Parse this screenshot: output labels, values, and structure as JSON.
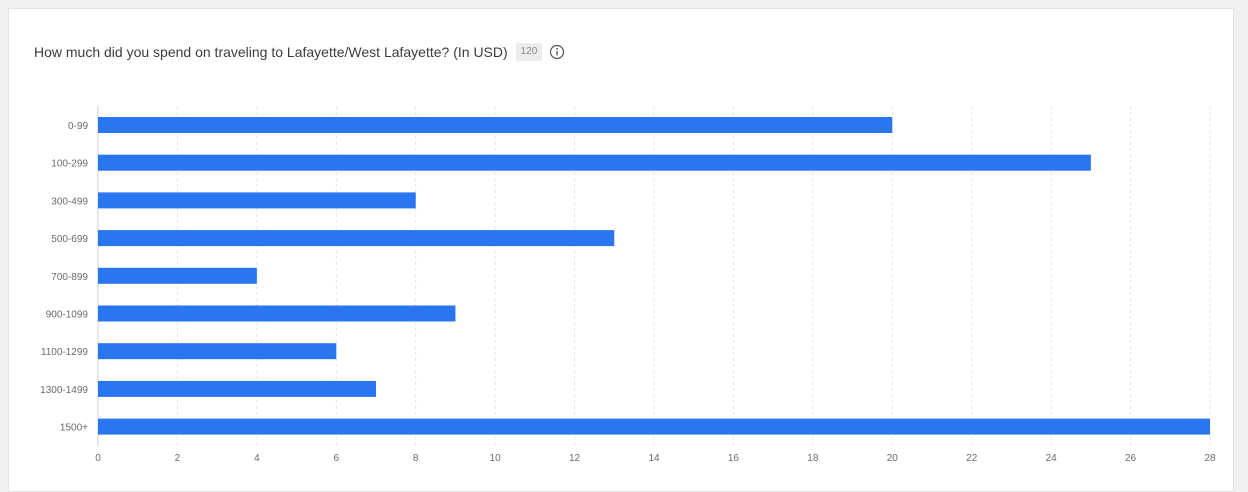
{
  "header": {
    "title": "How much did you spend on traveling to Lafayette/West Lafayette? (In USD)",
    "response_count": "120",
    "info_icon": "info-circle-icon"
  },
  "colors": {
    "bar": "#2a75f0",
    "grid": "#e3e3e3",
    "axis": "#cfcfcf"
  },
  "chart_data": {
    "type": "bar",
    "orientation": "horizontal",
    "title": "How much did you spend on traveling to Lafayette/West Lafayette? (In USD)",
    "categories": [
      "0-99",
      "100-299",
      "300-499",
      "500-699",
      "700-899",
      "900-1099",
      "1100-1299",
      "1300-1499",
      "1500+"
    ],
    "values": [
      20,
      25,
      8,
      13,
      4,
      9,
      6,
      7,
      28
    ],
    "xlim": [
      0,
      28
    ],
    "xticks": [
      "0",
      "2",
      "4",
      "6",
      "8",
      "10",
      "12",
      "14",
      "16",
      "18",
      "20",
      "22",
      "24",
      "26",
      "28"
    ],
    "grid": "vertical dashed",
    "xlabel": "",
    "ylabel": ""
  }
}
